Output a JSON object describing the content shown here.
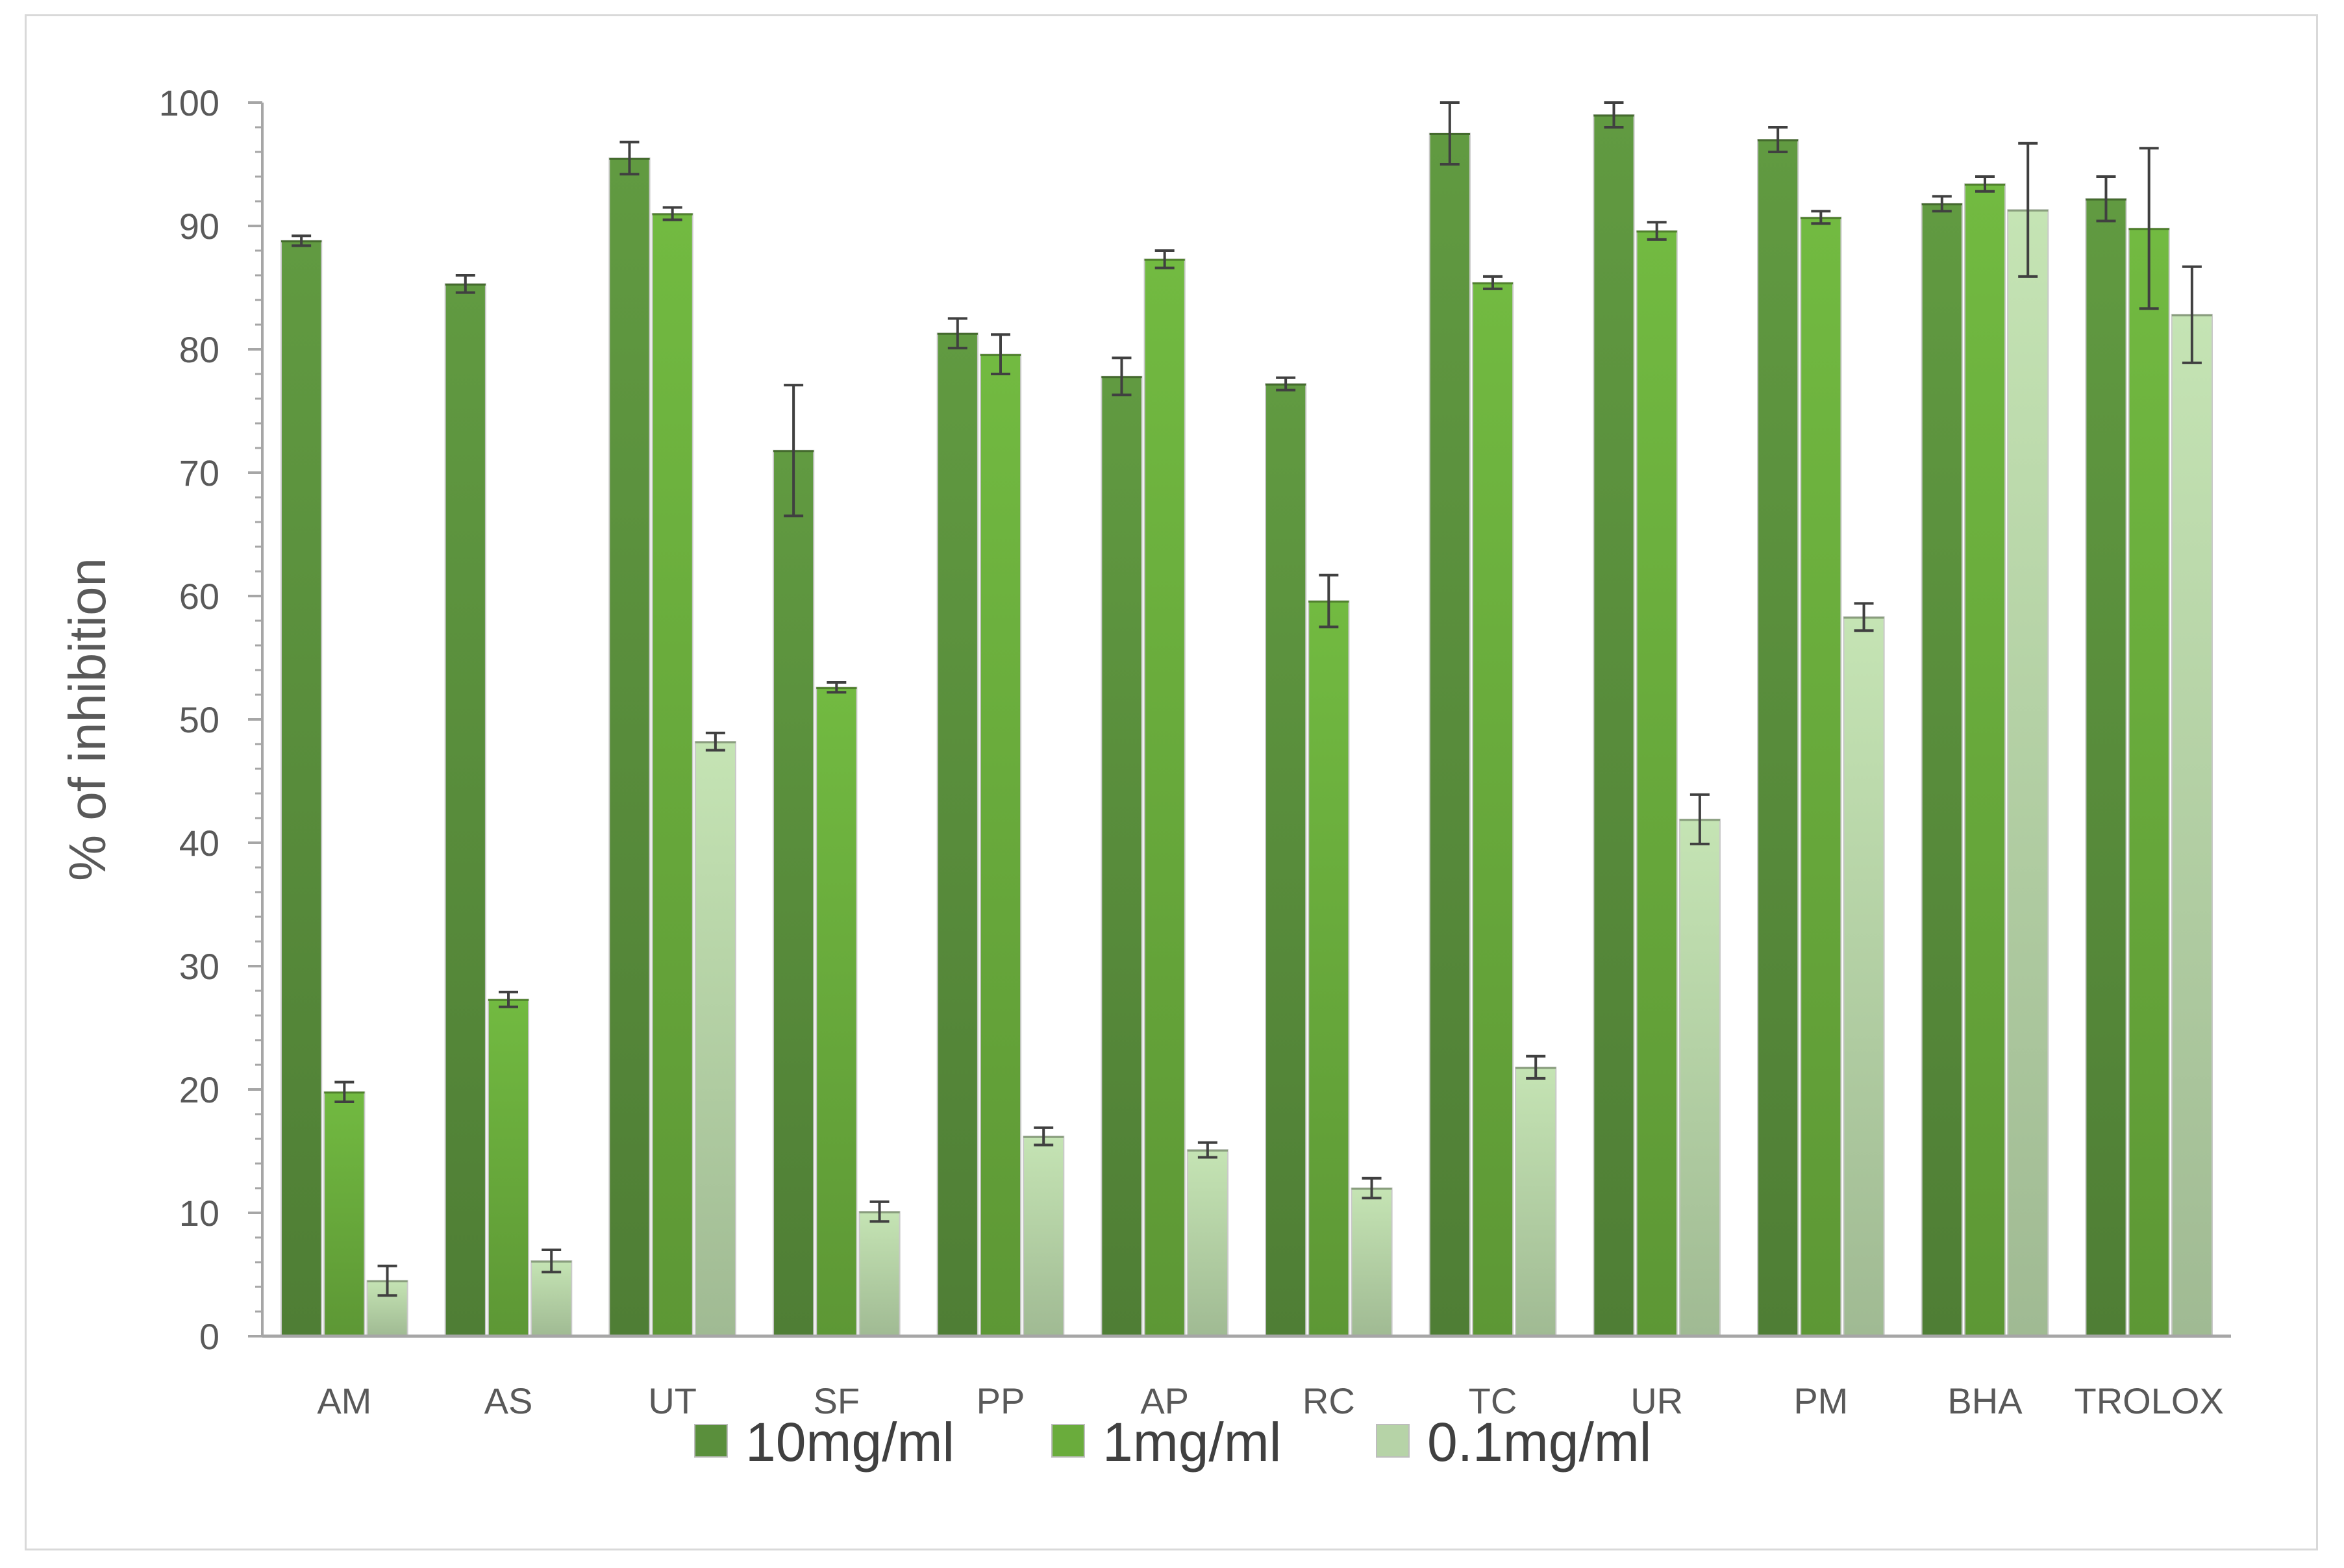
{
  "chart_data": {
    "type": "bar",
    "title": "",
    "xlabel": "",
    "ylabel": "% of inhibition",
    "ylim": [
      0,
      100
    ],
    "yticks": [
      0,
      10,
      20,
      30,
      40,
      50,
      60,
      70,
      80,
      90,
      100
    ],
    "grid": false,
    "legend_position": "bottom",
    "categories": [
      "AM",
      "AS",
      "UT",
      "SF",
      "PP",
      "AP",
      "RC",
      "TC",
      "UR",
      "PM",
      "BHA",
      "TROLOX"
    ],
    "series": [
      {
        "name": "10mg/ml",
        "color": "#5a8f3c",
        "values": [
          88.8,
          85.3,
          95.5,
          71.8,
          81.3,
          77.8,
          77.2,
          97.5,
          99.0,
          97.0,
          91.8,
          92.2
        ],
        "errors": [
          0.4,
          0.7,
          1.3,
          5.3,
          1.2,
          1.5,
          0.5,
          2.5,
          1.0,
          1.0,
          0.6,
          1.8
        ]
      },
      {
        "name": "1mg/ml",
        "color": "#6aac3c",
        "values": [
          19.8,
          27.3,
          91.0,
          52.6,
          79.6,
          87.3,
          59.6,
          85.4,
          89.6,
          90.7,
          93.4,
          89.8
        ],
        "errors": [
          0.8,
          0.6,
          0.5,
          0.4,
          1.6,
          0.7,
          2.1,
          0.5,
          0.7,
          0.5,
          0.6,
          6.5
        ]
      },
      {
        "name": "0.1mg/ml",
        "color": "#b6d3a7",
        "values": [
          4.5,
          6.1,
          48.2,
          10.1,
          16.2,
          15.1,
          12.0,
          21.8,
          41.9,
          58.3,
          91.3,
          82.8
        ],
        "errors": [
          1.2,
          0.9,
          0.7,
          0.8,
          0.7,
          0.6,
          0.8,
          0.9,
          2.0,
          1.1,
          5.4,
          3.9
        ]
      }
    ]
  }
}
